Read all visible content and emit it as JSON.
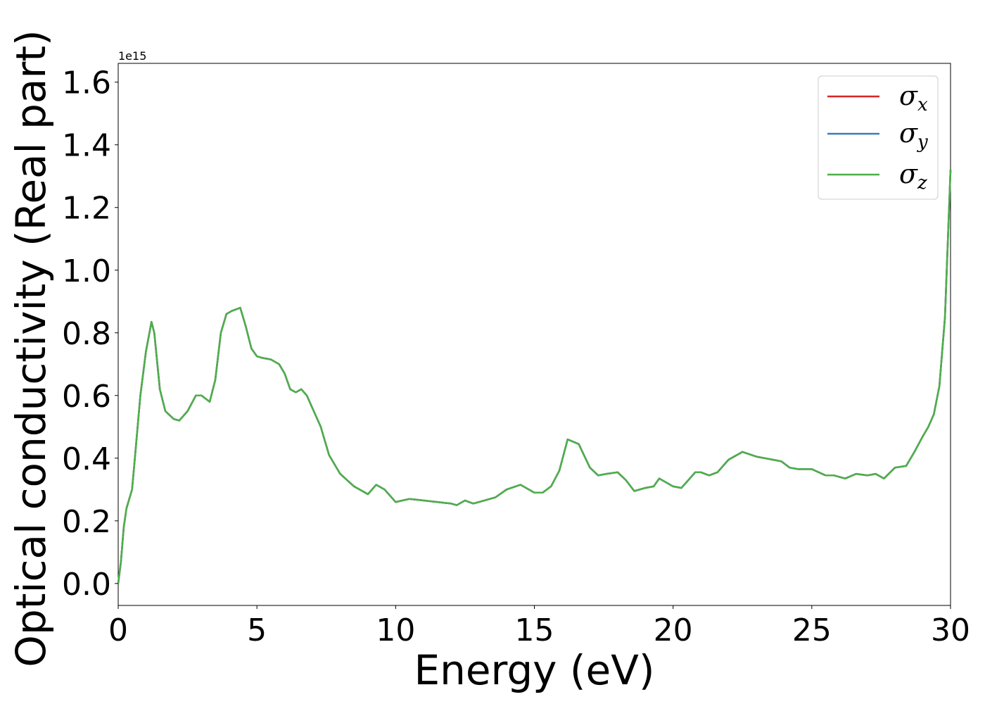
{
  "chart_data": {
    "type": "line",
    "title": "",
    "xlabel": "Energy (eV)",
    "ylabel": "Optical conductivity (Real part)",
    "y_offset_label": "1e15",
    "xlim": [
      0,
      30
    ],
    "ylim": [
      -0.07,
      1.66
    ],
    "x_ticks": [
      0,
      5,
      10,
      15,
      20,
      25,
      30
    ],
    "x_tick_labels": [
      "0",
      "5",
      "10",
      "15",
      "20",
      "25",
      "30"
    ],
    "y_ticks": [
      0.0,
      0.2,
      0.4,
      0.6,
      0.8,
      1.0,
      1.2,
      1.4,
      1.6
    ],
    "y_tick_labels": [
      "0.0",
      "0.2",
      "0.4",
      "0.6",
      "0.8",
      "1.0",
      "1.2",
      "1.4",
      "1.6"
    ],
    "grid": false,
    "legend_position": "top-right",
    "x": [
      0,
      0.1,
      0.2,
      0.3,
      0.5,
      0.6,
      0.8,
      1.0,
      1.2,
      1.3,
      1.5,
      1.7,
      2.0,
      2.2,
      2.5,
      2.8,
      3.0,
      3.3,
      3.5,
      3.7,
      3.9,
      4.1,
      4.4,
      4.6,
      4.8,
      5.0,
      5.2,
      5.5,
      5.8,
      6.0,
      6.2,
      6.4,
      6.6,
      6.8,
      7.0,
      7.3,
      7.6,
      8.0,
      8.5,
      9.0,
      9.3,
      9.6,
      10.0,
      10.5,
      11.0,
      11.5,
      12.0,
      12.2,
      12.5,
      12.8,
      13.2,
      13.6,
      14.0,
      14.5,
      14.8,
      15.0,
      15.3,
      15.6,
      15.9,
      16.2,
      16.6,
      17.0,
      17.3,
      17.6,
      18.0,
      18.3,
      18.6,
      19.0,
      19.3,
      19.5,
      19.8,
      20.0,
      20.3,
      20.5,
      20.8,
      21.0,
      21.3,
      21.6,
      22.0,
      22.5,
      23.0,
      23.3,
      23.6,
      23.9,
      24.2,
      24.5,
      25.0,
      25.5,
      25.8,
      26.2,
      26.6,
      27.0,
      27.3,
      27.6,
      28.0,
      28.4,
      28.7,
      29.0,
      29.2,
      29.4,
      29.6,
      29.8,
      30.0
    ],
    "series": [
      {
        "name": "σ",
        "subscript": "x",
        "color": "#d62728",
        "values": [
          0.0,
          0.07,
          0.18,
          0.24,
          0.3,
          0.4,
          0.6,
          0.74,
          0.835,
          0.8,
          0.62,
          0.55,
          0.525,
          0.52,
          0.55,
          0.6,
          0.6,
          0.58,
          0.65,
          0.8,
          0.86,
          0.87,
          0.88,
          0.82,
          0.75,
          0.725,
          0.72,
          0.715,
          0.7,
          0.67,
          0.62,
          0.61,
          0.62,
          0.6,
          0.56,
          0.5,
          0.41,
          0.35,
          0.31,
          0.285,
          0.315,
          0.3,
          0.26,
          0.27,
          0.265,
          0.26,
          0.255,
          0.25,
          0.265,
          0.255,
          0.265,
          0.275,
          0.3,
          0.315,
          0.3,
          0.29,
          0.29,
          0.31,
          0.36,
          0.46,
          0.445,
          0.37,
          0.345,
          0.35,
          0.355,
          0.33,
          0.295,
          0.305,
          0.31,
          0.335,
          0.32,
          0.31,
          0.305,
          0.325,
          0.355,
          0.355,
          0.345,
          0.355,
          0.395,
          0.42,
          0.405,
          0.4,
          0.395,
          0.39,
          0.37,
          0.365,
          0.365,
          0.345,
          0.345,
          0.335,
          0.35,
          0.345,
          0.35,
          0.335,
          0.37,
          0.375,
          0.42,
          0.47,
          0.5,
          0.54,
          0.63,
          0.85,
          1.32
        ]
      },
      {
        "name": "σ",
        "subscript": "y",
        "color": "#377eb8",
        "values": [
          0.0,
          0.07,
          0.18,
          0.24,
          0.3,
          0.4,
          0.6,
          0.74,
          0.835,
          0.8,
          0.62,
          0.55,
          0.525,
          0.52,
          0.55,
          0.6,
          0.6,
          0.58,
          0.65,
          0.8,
          0.86,
          0.87,
          0.88,
          0.82,
          0.75,
          0.725,
          0.72,
          0.715,
          0.7,
          0.67,
          0.62,
          0.61,
          0.62,
          0.6,
          0.56,
          0.5,
          0.41,
          0.35,
          0.31,
          0.285,
          0.315,
          0.3,
          0.26,
          0.27,
          0.265,
          0.26,
          0.255,
          0.25,
          0.265,
          0.255,
          0.265,
          0.275,
          0.3,
          0.315,
          0.3,
          0.29,
          0.29,
          0.31,
          0.36,
          0.46,
          0.445,
          0.37,
          0.345,
          0.35,
          0.355,
          0.33,
          0.295,
          0.305,
          0.31,
          0.335,
          0.32,
          0.31,
          0.305,
          0.325,
          0.355,
          0.355,
          0.345,
          0.355,
          0.395,
          0.42,
          0.405,
          0.4,
          0.395,
          0.39,
          0.37,
          0.365,
          0.365,
          0.345,
          0.345,
          0.335,
          0.35,
          0.345,
          0.35,
          0.335,
          0.37,
          0.375,
          0.42,
          0.47,
          0.5,
          0.54,
          0.63,
          0.85,
          1.32
        ]
      },
      {
        "name": "σ",
        "subscript": "z",
        "color": "#4daf4a",
        "values": [
          0.0,
          0.07,
          0.18,
          0.24,
          0.3,
          0.4,
          0.6,
          0.74,
          0.835,
          0.8,
          0.62,
          0.55,
          0.525,
          0.52,
          0.55,
          0.6,
          0.6,
          0.58,
          0.65,
          0.8,
          0.86,
          0.87,
          0.88,
          0.82,
          0.75,
          0.725,
          0.72,
          0.715,
          0.7,
          0.67,
          0.62,
          0.61,
          0.62,
          0.6,
          0.56,
          0.5,
          0.41,
          0.35,
          0.31,
          0.285,
          0.315,
          0.3,
          0.26,
          0.27,
          0.265,
          0.26,
          0.255,
          0.25,
          0.265,
          0.255,
          0.265,
          0.275,
          0.3,
          0.315,
          0.3,
          0.29,
          0.29,
          0.31,
          0.36,
          0.46,
          0.445,
          0.37,
          0.345,
          0.35,
          0.355,
          0.33,
          0.295,
          0.305,
          0.31,
          0.335,
          0.32,
          0.31,
          0.305,
          0.325,
          0.355,
          0.355,
          0.345,
          0.355,
          0.395,
          0.42,
          0.405,
          0.4,
          0.395,
          0.39,
          0.37,
          0.365,
          0.365,
          0.345,
          0.345,
          0.335,
          0.35,
          0.345,
          0.35,
          0.335,
          0.37,
          0.375,
          0.42,
          0.47,
          0.5,
          0.54,
          0.63,
          0.85,
          1.32
        ]
      }
    ]
  }
}
